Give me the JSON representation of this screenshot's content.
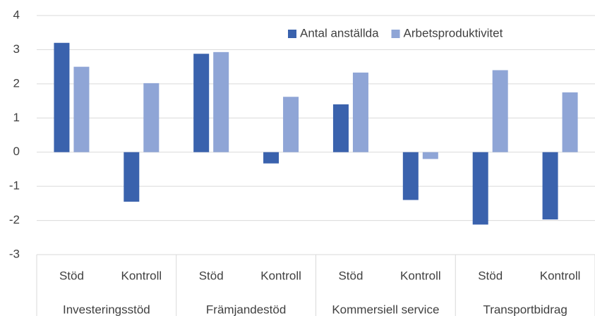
{
  "chart_data": {
    "type": "bar",
    "categories": [
      "Stöd",
      "Kontroll",
      "Stöd",
      "Kontroll",
      "Stöd",
      "Kontroll",
      "Stöd",
      "Kontroll"
    ],
    "category_groups": [
      "Investeringsstöd",
      "Främjandestöd",
      "Kommersiell service",
      "Transportbidrag"
    ],
    "series": [
      {
        "name": "Antal anställda",
        "color": "#3a62ad",
        "values": [
          3.2,
          -1.45,
          2.88,
          -0.33,
          1.4,
          -1.4,
          -2.12,
          -1.97
        ]
      },
      {
        "name": "Arbetsproduktivitet",
        "color": "#8fa5d6",
        "values": [
          2.5,
          2.02,
          2.93,
          1.62,
          2.33,
          -0.2,
          2.4,
          1.75
        ]
      }
    ],
    "ylim": [
      -3,
      4
    ],
    "yticks": [
      -3,
      -2,
      -1,
      0,
      1,
      2,
      3,
      4
    ],
    "grid": true,
    "legend": "top-right"
  }
}
